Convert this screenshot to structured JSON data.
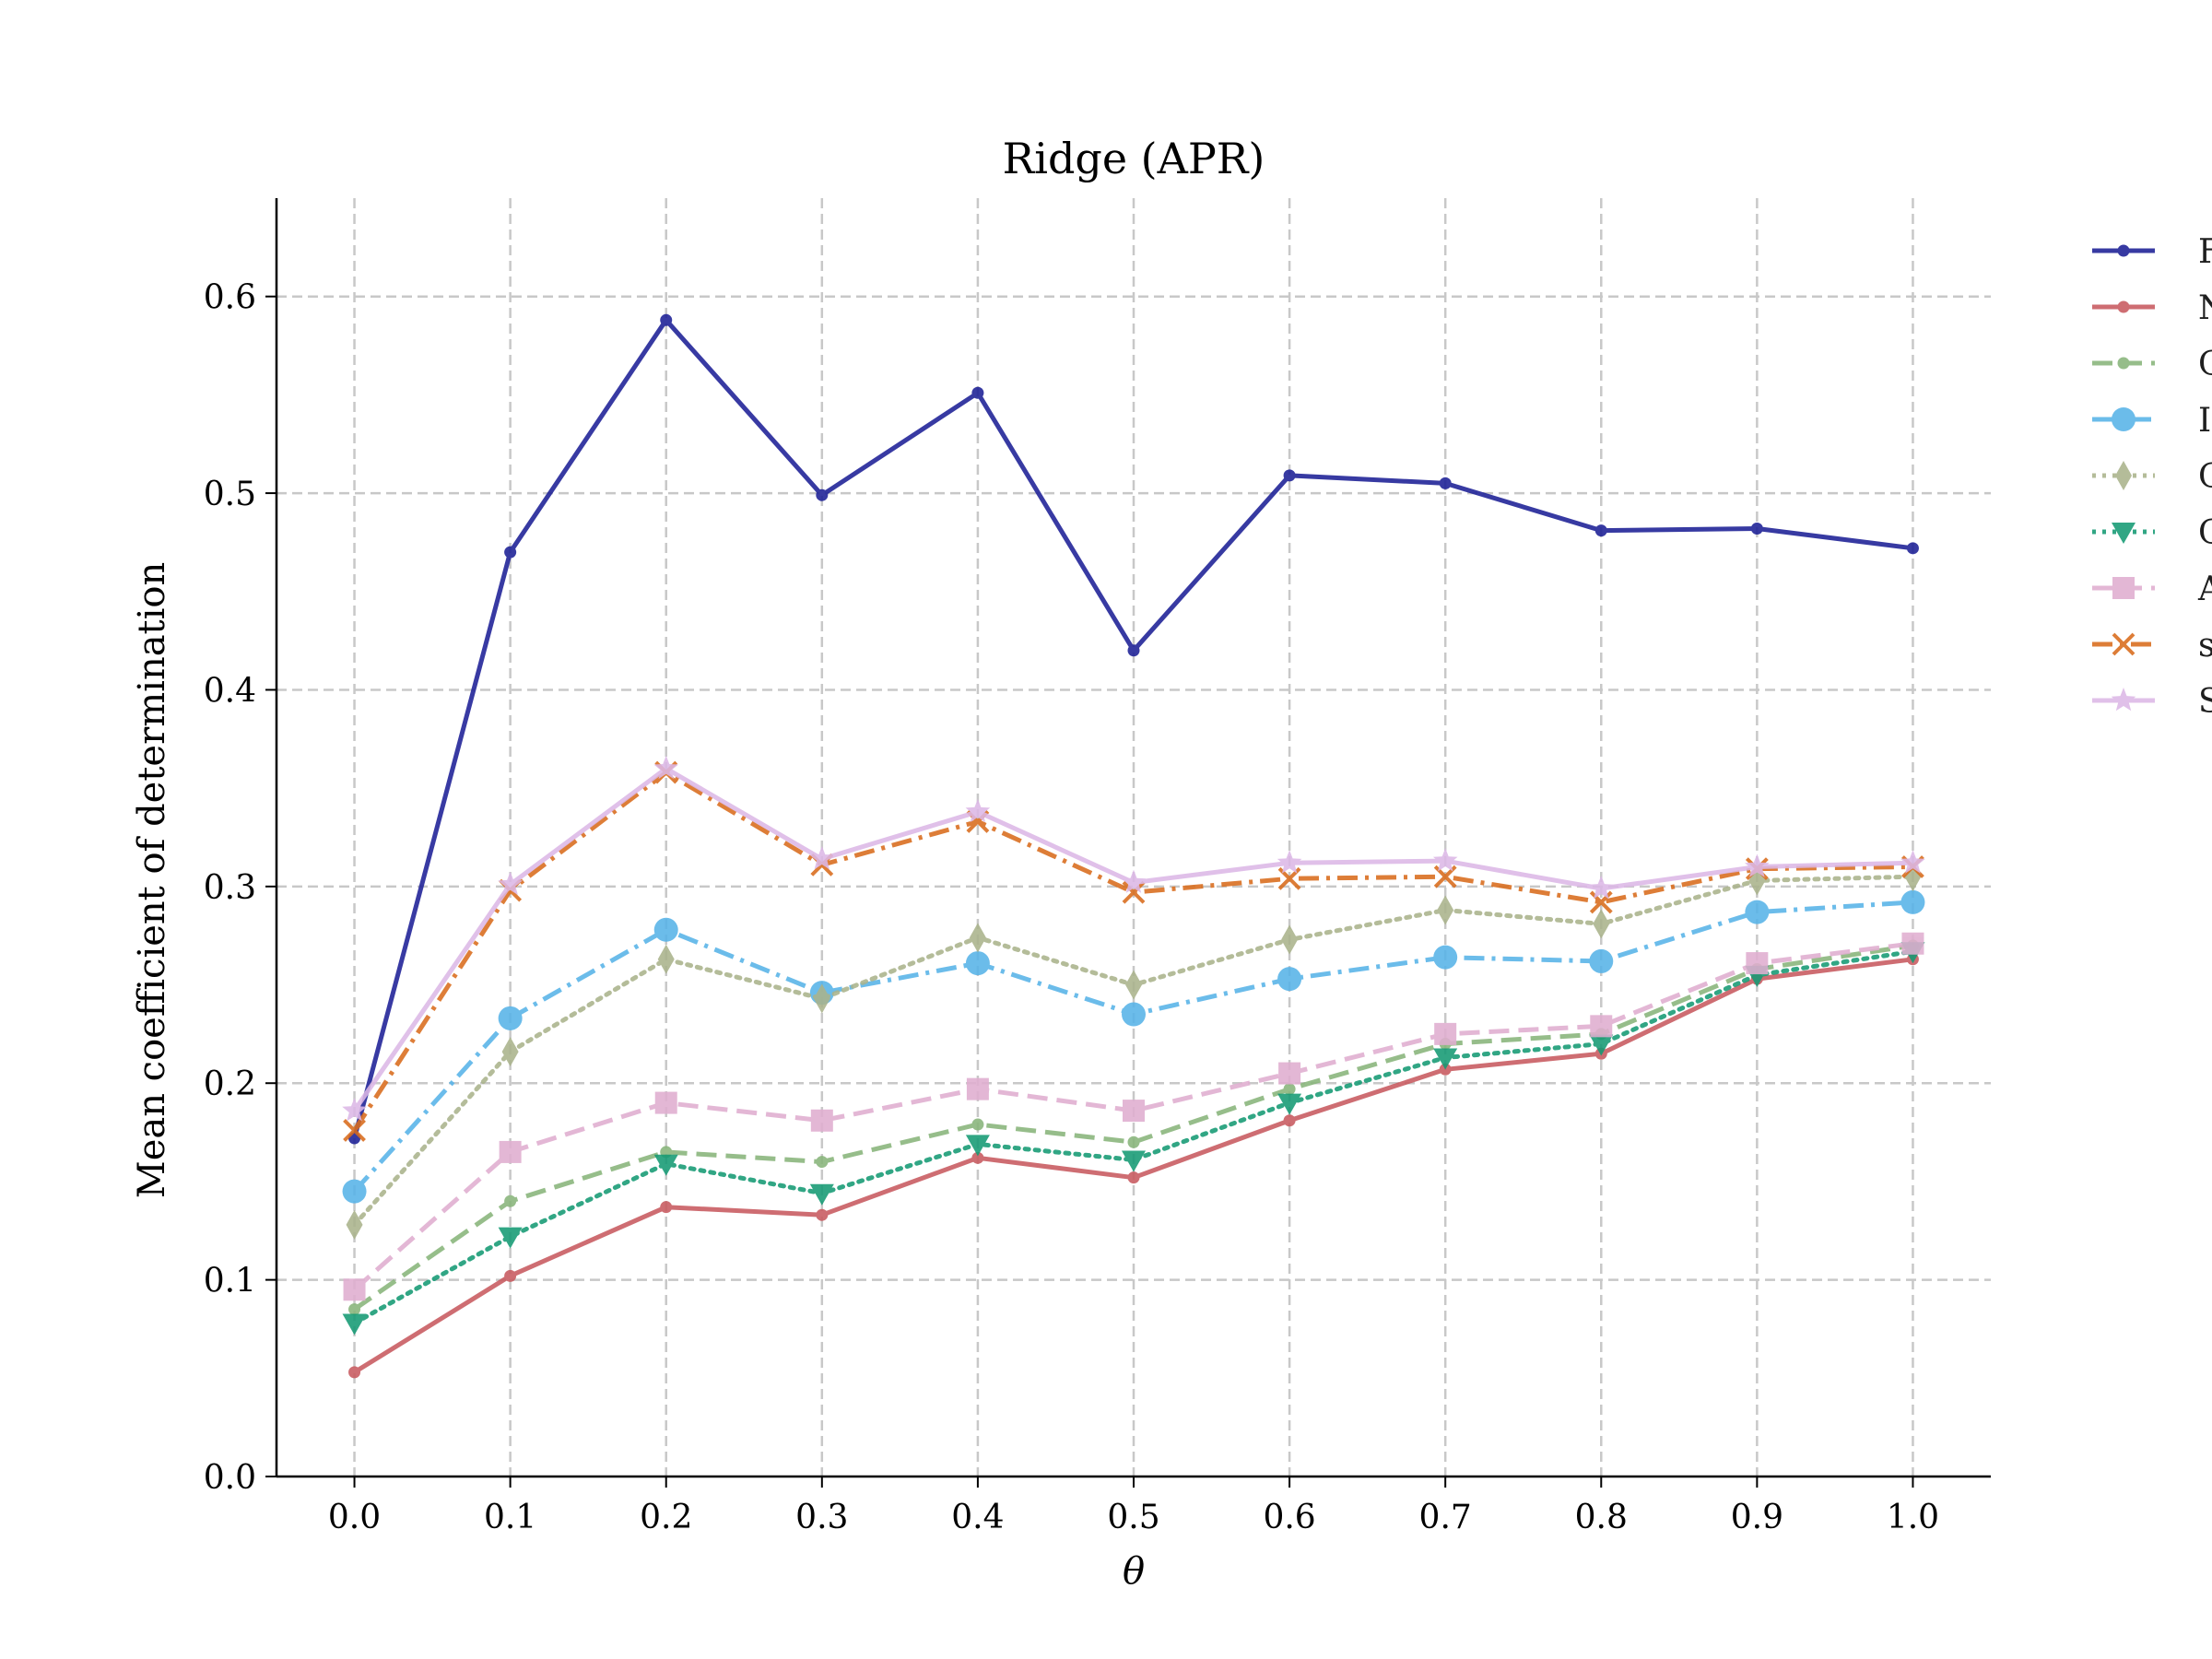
{
  "chart_data": {
    "type": "line",
    "title": "Ridge (APR)",
    "xlabel": "θ",
    "ylabel": "Mean coefficient of determination",
    "xlim": [
      -0.05,
      1.05
    ],
    "ylim": [
      0.0,
      0.65
    ],
    "x": [
      0.0,
      0.1,
      0.2,
      0.3,
      0.4,
      0.5,
      0.6,
      0.7,
      0.8,
      0.9,
      1.0
    ],
    "xticks": [
      "0.0",
      "0.1",
      "0.2",
      "0.3",
      "0.4",
      "0.5",
      "0.6",
      "0.7",
      "0.8",
      "0.9",
      "1.0"
    ],
    "yticks": [
      "0.0",
      "0.1",
      "0.2",
      "0.3",
      "0.4",
      "0.5",
      "0.6"
    ],
    "grid": true,
    "legend_position": "right, outside plot (partially cropped)",
    "series": [
      {
        "name": "F",
        "color": "#1c1f96",
        "dash": "solid",
        "marker": "dot",
        "values": [
          0.172,
          0.47,
          0.588,
          0.499,
          0.551,
          0.42,
          0.509,
          0.505,
          0.481,
          0.482,
          0.472
        ]
      },
      {
        "name": "N",
        "color": "#c85a5f",
        "dash": "solid",
        "marker": "dot",
        "values": [
          0.053,
          0.102,
          0.137,
          0.133,
          0.162,
          0.152,
          0.181,
          0.207,
          0.215,
          0.253,
          0.263
        ]
      },
      {
        "name": "C",
        "color": "#88b57a",
        "dash": "dashed",
        "marker": "dot",
        "values": [
          0.085,
          0.14,
          0.165,
          0.16,
          0.179,
          0.17,
          0.197,
          0.22,
          0.225,
          0.258,
          0.27
        ]
      },
      {
        "name": "I",
        "color": "#57b3e8",
        "dash": "dashdot",
        "marker": "circle",
        "values": [
          0.145,
          0.233,
          0.278,
          0.246,
          0.261,
          0.235,
          0.253,
          0.264,
          0.262,
          0.287,
          0.292
        ]
      },
      {
        "name": "C",
        "color": "#aab38c",
        "dash": "dotted",
        "marker": "thin_diamond",
        "values": [
          0.128,
          0.216,
          0.263,
          0.243,
          0.274,
          0.25,
          0.273,
          0.288,
          0.281,
          0.303,
          0.305
        ]
      },
      {
        "name": "C",
        "color": "#159a74",
        "dash": "dotted",
        "marker": "triangle_down",
        "values": [
          0.078,
          0.122,
          0.159,
          0.144,
          0.169,
          0.161,
          0.19,
          0.213,
          0.22,
          0.255,
          0.267
        ]
      },
      {
        "name": "A",
        "color": "#e0aed0",
        "dash": "dashed",
        "marker": "square",
        "values": [
          0.095,
          0.165,
          0.19,
          0.181,
          0.197,
          0.186,
          0.205,
          0.225,
          0.229,
          0.261,
          0.271
        ]
      },
      {
        "name": "s",
        "color": "#d96c1c",
        "dash": "dashdot",
        "marker": "x",
        "values": [
          0.176,
          0.298,
          0.358,
          0.311,
          0.333,
          0.297,
          0.304,
          0.305,
          0.292,
          0.309,
          0.31
        ]
      },
      {
        "name": "S",
        "color": "#dcb8e6",
        "dash": "solid",
        "marker": "star",
        "values": [
          0.186,
          0.301,
          0.36,
          0.314,
          0.338,
          0.302,
          0.312,
          0.313,
          0.299,
          0.31,
          0.312
        ]
      }
    ]
  }
}
